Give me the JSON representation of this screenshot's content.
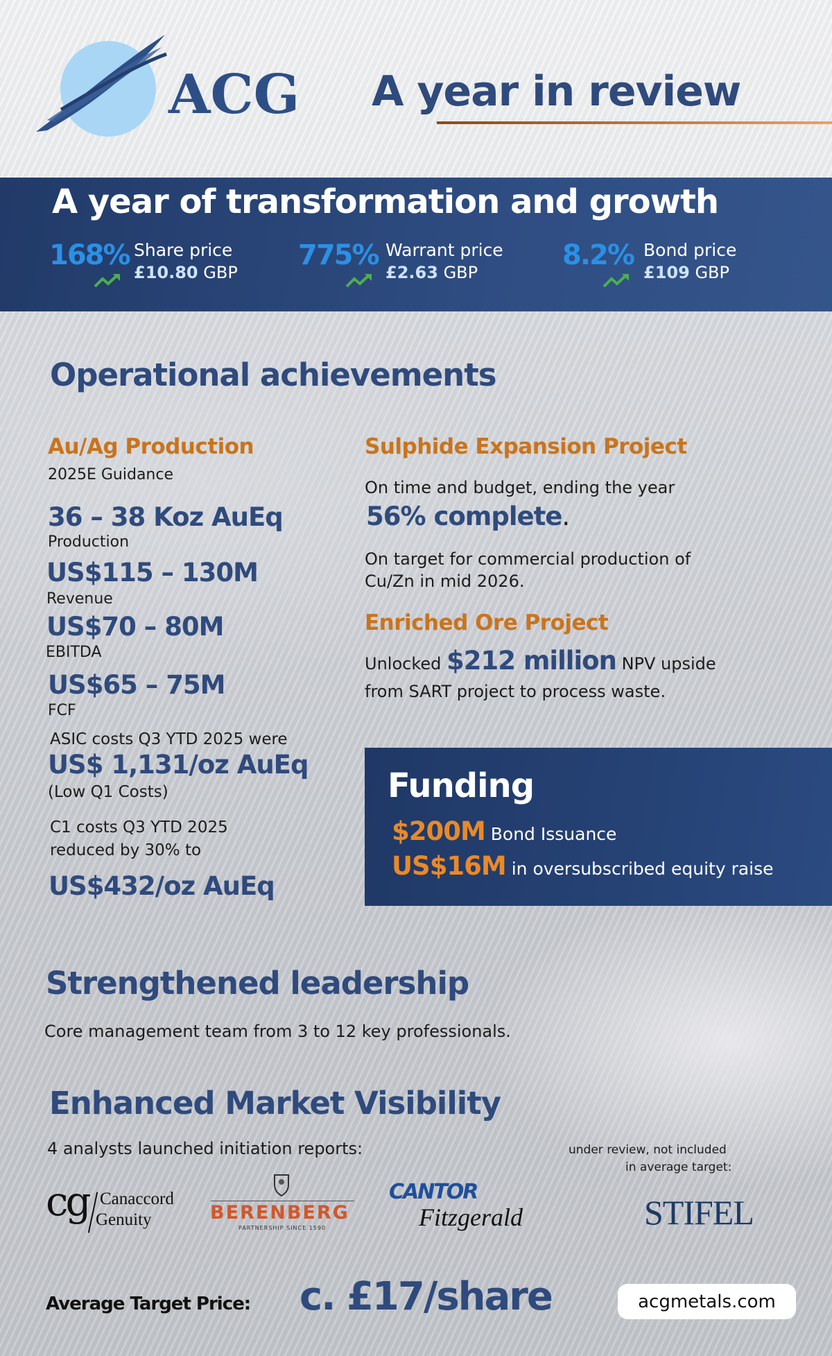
{
  "header": {
    "logo_text": "ACG",
    "title": "A year in review"
  },
  "band": {
    "title": "A year of transformation and growth",
    "stats": [
      {
        "pct": "168%",
        "label": "Share price",
        "value": "£10.80",
        "unit": "GBP",
        "icon": "trend-up-icon"
      },
      {
        "pct": "775%",
        "label": "Warrant price",
        "value": "£2.63",
        "unit": "GBP",
        "icon": "trend-up-icon"
      },
      {
        "pct": "8.2%",
        "label": "Bond price",
        "value": "£109",
        "unit": "GBP",
        "icon": "trend-up-icon"
      }
    ]
  },
  "operational": {
    "title": "Operational achievements",
    "production": {
      "heading": "Au/Ag Production",
      "guidance": "2025E Guidance",
      "items": [
        {
          "value": "36 – 38 Koz AuEq",
          "label": "Production"
        },
        {
          "value": "US$115 – 130M",
          "label": "Revenue"
        },
        {
          "value": "US$70 – 80M",
          "label": "EBITDA"
        },
        {
          "value": "US$65 – 75M",
          "label": "FCF"
        }
      ],
      "asic_intro": "ASIC costs Q3 YTD 2025 were",
      "asic_value": "US$ 1,131/oz AuEq",
      "asic_note": "(Low Q1 Costs)",
      "c1_line1": "C1 costs Q3 YTD 2025",
      "c1_line2": "reduced by 30% to",
      "c1_value": "US$432/oz AuEq"
    },
    "sulphide": {
      "heading": "Sulphide Expansion Project",
      "line1": "On time and budget, ending the year",
      "highlight": "56% complete",
      "highlight_end": ".",
      "line2": "On target for commercial production of",
      "line3": "Cu/Zn in mid 2026."
    },
    "enriched": {
      "heading": "Enriched Ore Project",
      "pre": "Unlocked",
      "highlight": "$212 million",
      "post": "NPV upside",
      "line2": "from SART project to process waste."
    },
    "funding": {
      "title": "Funding",
      "items": [
        {
          "value": "$200M",
          "text": "Bond Issuance"
        },
        {
          "value": "US$16M",
          "text": "in oversubscribed equity raise"
        }
      ]
    }
  },
  "leadership": {
    "title": "Strengthened leadership",
    "text": "Core management team from 3 to 12 key professionals."
  },
  "visibility": {
    "title": "Enhanced Market Visibility",
    "intro": "4 analysts launched initiation reports:",
    "note_line1": "under review, not included",
    "note_line2": "in average target:",
    "analysts": [
      {
        "name": "Canaccord Genuity",
        "mark": "cg",
        "line1": "Canaccord",
        "line2": "Genuity"
      },
      {
        "name": "BERENBERG",
        "tagline": "PARTNERSHIP SINCE 1590"
      },
      {
        "name": "CANTOR",
        "line2": "Fitzgerald"
      },
      {
        "name": "STIFEL"
      }
    ],
    "target_label": "Average Target Price:",
    "target_value": "c. £17/share"
  },
  "footer": {
    "website": "acgmetals.com"
  },
  "colors": {
    "navy": "#2f4a7c",
    "orange": "#c8741e",
    "stat_blue": "#2a90e6",
    "band": "#213a68",
    "green": "#4caf50",
    "berenberg": "#d2572a"
  }
}
